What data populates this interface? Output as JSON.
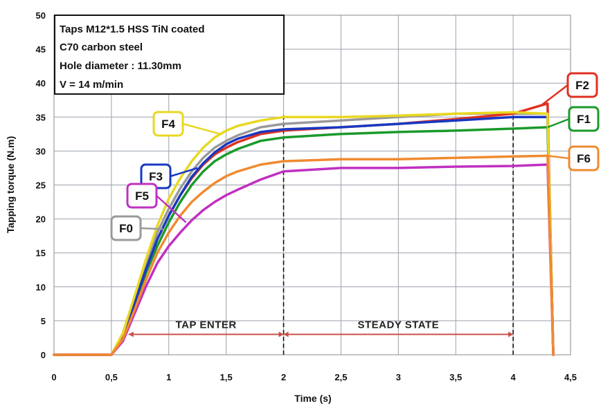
{
  "chart_data": {
    "type": "line",
    "xlabel": "Time (s)",
    "ylabel": "Tapping torque (N.m)",
    "xlim": [
      0,
      4.5
    ],
    "ylim": [
      0,
      50
    ],
    "x_ticks": [
      "0",
      "0,5",
      "1",
      "1,5",
      "2",
      "2,5",
      "3",
      "3,5",
      "4",
      "4,5"
    ],
    "y_ticks": [
      "0",
      "5",
      "10",
      "15",
      "20",
      "25",
      "30",
      "35",
      "40",
      "45",
      "50"
    ],
    "grid": true,
    "info_box": [
      "Taps M12*1.5 HSS TiN coated",
      "C70 carbon steel",
      "Hole diameter : 11.30mm",
      "V = 14 m/min"
    ],
    "phases": [
      {
        "label": "TAP ENTER",
        "from": 0.65,
        "to": 2.0
      },
      {
        "label": "STEADY STATE",
        "from": 2.0,
        "to": 4.0
      }
    ],
    "phase_dividers": [
      2.0,
      4.0
    ],
    "series": [
      {
        "name": "F0",
        "color": "#9a9a9a",
        "x": [
          0,
          0.5,
          0.6,
          0.7,
          0.8,
          0.9,
          1.0,
          1.1,
          1.2,
          1.3,
          1.4,
          1.5,
          1.6,
          1.8,
          2.0,
          2.5,
          3.0,
          3.5,
          4.0,
          4.3,
          4.35
        ],
        "y": [
          0,
          0,
          3,
          8,
          13,
          18,
          21.5,
          24.5,
          27,
          29,
          30.5,
          31.5,
          32.3,
          33.5,
          34,
          34.5,
          35,
          35.5,
          35.5,
          35.5,
          0
        ]
      },
      {
        "name": "F1",
        "color": "#1a9a2a",
        "x": [
          0,
          0.5,
          0.6,
          0.7,
          0.8,
          0.9,
          1.0,
          1.1,
          1.2,
          1.3,
          1.4,
          1.5,
          1.6,
          1.8,
          2.0,
          2.5,
          3.0,
          3.5,
          4.0,
          4.3,
          4.35
        ],
        "y": [
          0,
          0,
          2.5,
          7,
          12,
          16,
          19.5,
          22.5,
          25,
          27,
          28.5,
          29.5,
          30.3,
          31.5,
          32,
          32.5,
          32.8,
          33,
          33.3,
          33.5,
          0
        ]
      },
      {
        "name": "F2",
        "color": "#e03020",
        "x": [
          0,
          0.5,
          0.6,
          0.7,
          0.8,
          0.9,
          1.0,
          1.1,
          1.2,
          1.3,
          1.4,
          1.5,
          1.6,
          1.8,
          2.0,
          2.5,
          3.0,
          3.5,
          4.0,
          4.2,
          4.3,
          4.35
        ],
        "y": [
          0,
          0,
          2.5,
          7.5,
          12.5,
          17,
          20.5,
          23.5,
          26,
          28,
          29.5,
          30.5,
          31.3,
          32.5,
          33,
          33.5,
          34,
          34.7,
          35.5,
          36.5,
          37,
          0
        ]
      },
      {
        "name": "F3",
        "color": "#1838c0",
        "x": [
          0,
          0.5,
          0.6,
          0.7,
          0.8,
          0.9,
          1.0,
          1.1,
          1.2,
          1.3,
          1.4,
          1.5,
          1.6,
          1.8,
          2.0,
          2.5,
          3.0,
          3.5,
          4.0,
          4.3,
          4.35
        ],
        "y": [
          0,
          0,
          2.8,
          7.5,
          12.5,
          17,
          20.5,
          23.5,
          26.2,
          28.2,
          29.8,
          31,
          31.8,
          32.8,
          33.2,
          33.5,
          34,
          34.5,
          35,
          35,
          0
        ]
      },
      {
        "name": "F4",
        "color": "#e8d820",
        "x": [
          0,
          0.5,
          0.6,
          0.7,
          0.8,
          0.9,
          1.0,
          1.1,
          1.2,
          1.3,
          1.4,
          1.5,
          1.6,
          1.8,
          2.0,
          2.5,
          3.0,
          3.5,
          4.0,
          4.3,
          4.35
        ],
        "y": [
          0,
          0,
          3.2,
          8.5,
          14,
          19,
          23,
          26,
          28.5,
          30.5,
          32,
          33,
          33.7,
          34.5,
          35,
          35,
          35.2,
          35.5,
          35.7,
          35.5,
          0
        ]
      },
      {
        "name": "F5",
        "color": "#c030c0",
        "x": [
          0,
          0.5,
          0.6,
          0.7,
          0.8,
          0.9,
          1.0,
          1.1,
          1.2,
          1.3,
          1.4,
          1.5,
          1.6,
          1.8,
          2.0,
          2.5,
          3.0,
          3.5,
          4.0,
          4.3,
          4.35
        ],
        "y": [
          0,
          0,
          2,
          6,
          10,
          13.5,
          16,
          18,
          19.8,
          21.3,
          22.5,
          23.5,
          24.3,
          25.8,
          27,
          27.5,
          27.5,
          27.7,
          27.8,
          28,
          0
        ]
      },
      {
        "name": "F6",
        "color": "#f08a30",
        "x": [
          0,
          0.5,
          0.6,
          0.7,
          0.8,
          0.9,
          1.0,
          1.1,
          1.2,
          1.3,
          1.4,
          1.5,
          1.6,
          1.8,
          2.0,
          2.5,
          3.0,
          3.5,
          4.0,
          4.3,
          4.35
        ],
        "y": [
          0,
          0,
          2.3,
          6.5,
          11,
          15,
          18,
          20.5,
          22.5,
          24,
          25.3,
          26.3,
          27,
          28,
          28.5,
          28.8,
          28.8,
          29,
          29.2,
          29.3,
          0
        ]
      }
    ],
    "curve_labels": [
      {
        "name": "F4",
        "box_color": "#e8d820",
        "anchor_x": 1.45,
        "anchor_y": 32.5
      },
      {
        "name": "F3",
        "box_color": "#1838c0",
        "anchor_x": 1.25,
        "anchor_y": 27.5
      },
      {
        "name": "F5",
        "box_color": "#c030c0",
        "anchor_x": 1.15,
        "anchor_y": 19.5
      },
      {
        "name": "F0",
        "box_color": "#9a9a9a",
        "anchor_x": 0.95,
        "anchor_y": 18.5
      },
      {
        "name": "F2",
        "box_color": "#e03020",
        "anchor_x": 4.25,
        "anchor_y": 36.8
      },
      {
        "name": "F1",
        "box_color": "#1a9a2a",
        "anchor_x": 4.3,
        "anchor_y": 33.5
      },
      {
        "name": "F6",
        "box_color": "#f08a30",
        "anchor_x": 4.3,
        "anchor_y": 29.3
      }
    ]
  }
}
